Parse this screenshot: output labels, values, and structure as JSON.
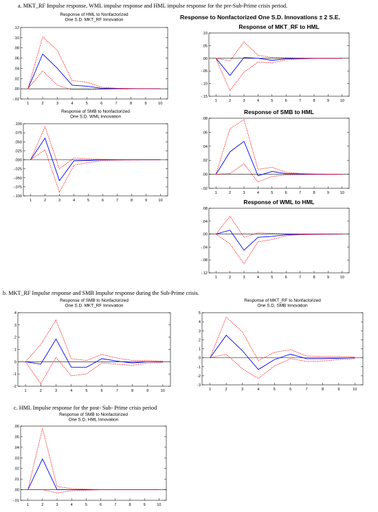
{
  "captions": {
    "a": "a. MKT_RF Impulse response, WML impulse response and HML impulse response for the pre-Sub-Prime crisis period.",
    "b": "b. MKT_RF Impulse response and SMB Impulse response during the Sub-Prime crisis.",
    "c": "c. HML Impulse response for the post- Sub- Prime crisis period"
  },
  "group_title": "Response to Nonfactorized One S.D. Innovations ± 2 S.E.",
  "colors": {
    "response": "#0000ff",
    "band": "#ff0000",
    "axis": "#000000",
    "zero": "#000000"
  },
  "chart_data": [
    {
      "id": "a1",
      "type": "line",
      "title": [
        "Response of HML to Nonfactorized",
        "One S.D. MKT_RF Innovation"
      ],
      "x": [
        1,
        2,
        3,
        4,
        5,
        6,
        7,
        8,
        9,
        10
      ],
      "xticks": [
        "1",
        "2",
        "3",
        "4",
        "5",
        "6",
        "7",
        "8",
        "9",
        "10"
      ],
      "ylim": [
        -0.02,
        0.12
      ],
      "yticks": [
        -0.02,
        0.0,
        0.02,
        0.04,
        0.06,
        0.08,
        0.1,
        0.12
      ],
      "yticklabels": [
        "-.02",
        ".00",
        ".02",
        ".04",
        ".06",
        ".08",
        ".10",
        ".12"
      ],
      "series": [
        {
          "role": "response",
          "values": [
            0.0,
            0.068,
            0.04,
            0.007,
            0.005,
            0.001,
            0.0005,
            0.0002,
            0.0001,
            0.0
          ]
        },
        {
          "role": "upper",
          "values": [
            0.0,
            0.102,
            0.075,
            0.016,
            0.013,
            0.003,
            0.001,
            0.0005,
            0.0002,
            0.0
          ]
        },
        {
          "role": "lower",
          "values": [
            0.0,
            0.035,
            0.007,
            -0.002,
            -0.002,
            -0.001,
            -0.0005,
            -0.0002,
            -0.0001,
            0.0
          ]
        }
      ]
    },
    {
      "id": "a2",
      "type": "line",
      "title": [
        "Response of SMB to Nonfactorized",
        "One S.D. WML Innovation"
      ],
      "x": [
        1,
        2,
        3,
        4,
        5,
        6,
        7,
        8,
        9,
        10
      ],
      "xticks": [
        "1",
        "2",
        "3",
        "4",
        "5",
        "6",
        "7",
        "8",
        "9",
        "10"
      ],
      "ylim": [
        -0.1,
        0.1
      ],
      "yticks": [
        -0.1,
        -0.075,
        -0.05,
        -0.025,
        0.0,
        0.025,
        0.05,
        0.075,
        0.1
      ],
      "yticklabels": [
        "-.100",
        "-.075",
        "-.050",
        "-.025",
        ".000",
        ".025",
        ".050",
        ".075",
        ".100"
      ],
      "series": [
        {
          "role": "response",
          "values": [
            0.0,
            0.06,
            -0.058,
            -0.003,
            -0.002,
            0.0,
            0.0,
            0.0,
            0.0,
            0.0
          ]
        },
        {
          "role": "upper",
          "values": [
            0.0,
            0.092,
            -0.025,
            0.005,
            0.003,
            0.001,
            0.0005,
            0.0002,
            0.0001,
            0.0
          ]
        },
        {
          "role": "lower",
          "values": [
            0.0,
            0.028,
            -0.09,
            -0.015,
            -0.008,
            -0.002,
            -0.001,
            -0.0005,
            -0.0002,
            0.0
          ]
        }
      ]
    },
    {
      "id": "a3",
      "type": "line",
      "title": [
        "Response of MKT_RF to HML"
      ],
      "x": [
        1,
        2,
        3,
        4,
        5,
        6,
        7,
        8,
        9,
        10
      ],
      "xticks": [
        "1",
        "2",
        "3",
        "4",
        "5",
        "6",
        "7",
        "8",
        "9",
        "10"
      ],
      "ylim": [
        -0.15,
        0.1
      ],
      "yticks": [
        -0.15,
        -0.1,
        -0.05,
        0.0,
        0.05,
        0.1
      ],
      "yticklabels": [
        "-.15",
        "-.10",
        "-.05",
        ".00",
        ".05",
        ".10"
      ],
      "series": [
        {
          "role": "response",
          "values": [
            0.0,
            -0.068,
            0.003,
            0.0,
            -0.008,
            -0.002,
            -0.001,
            -0.0005,
            -0.0002,
            0.0
          ]
        },
        {
          "role": "upper",
          "values": [
            0.0,
            -0.01,
            0.065,
            0.012,
            0.003,
            0.002,
            0.001,
            0.0005,
            0.0002,
            0.0
          ]
        },
        {
          "role": "lower",
          "values": [
            0.0,
            -0.128,
            -0.055,
            -0.015,
            -0.018,
            -0.006,
            -0.003,
            -0.001,
            -0.0005,
            0.0
          ]
        }
      ]
    },
    {
      "id": "a4",
      "type": "line",
      "title": [
        "Response of SMB to HML"
      ],
      "x": [
        1,
        2,
        3,
        4,
        5,
        6,
        7,
        8,
        9,
        10
      ],
      "xticks": [
        "1",
        "2",
        "3",
        "4",
        "5",
        "6",
        "7",
        "8",
        "9",
        "10"
      ],
      "ylim": [
        -0.02,
        0.08
      ],
      "yticks": [
        -0.02,
        0.0,
        0.02,
        0.04,
        0.06,
        0.08
      ],
      "yticklabels": [
        "-.02",
        ".00",
        ".02",
        ".04",
        ".06",
        ".08"
      ],
      "series": [
        {
          "role": "response",
          "values": [
            0.0,
            0.032,
            0.047,
            -0.002,
            0.004,
            0.001,
            0.0005,
            0.0002,
            0.0001,
            0.0
          ]
        },
        {
          "role": "upper",
          "values": [
            0.0,
            0.065,
            0.078,
            0.007,
            0.01,
            0.003,
            0.001,
            0.0005,
            0.0002,
            0.0
          ]
        },
        {
          "role": "lower",
          "values": [
            0.0,
            0.001,
            0.015,
            -0.011,
            -0.003,
            -0.001,
            -0.0005,
            -0.0002,
            -0.0001,
            0.0
          ]
        }
      ]
    },
    {
      "id": "a5",
      "type": "line",
      "title": [
        "Response of WML to HML"
      ],
      "x": [
        1,
        2,
        3,
        4,
        5,
        6,
        7,
        8,
        9,
        10
      ],
      "xticks": [
        "1",
        "2",
        "3",
        "4",
        "5",
        "6",
        "7",
        "8",
        "9",
        "10"
      ],
      "ylim": [
        -0.12,
        0.08
      ],
      "yticks": [
        -0.12,
        -0.08,
        -0.04,
        0.0,
        0.04,
        0.08
      ],
      "yticklabels": [
        "-.12",
        "-.08",
        "-.04",
        ".00",
        ".04",
        ".08"
      ],
      "series": [
        {
          "role": "response",
          "values": [
            0.0,
            0.012,
            -0.05,
            -0.01,
            -0.007,
            -0.002,
            -0.001,
            -0.0005,
            -0.0002,
            0.0
          ]
        },
        {
          "role": "upper",
          "values": [
            0.0,
            0.055,
            -0.01,
            0.004,
            0.002,
            0.001,
            0.0005,
            0.0002,
            0.0001,
            0.0
          ]
        },
        {
          "role": "lower",
          "values": [
            0.0,
            -0.03,
            -0.092,
            -0.024,
            -0.017,
            -0.005,
            -0.002,
            -0.001,
            -0.0005,
            0.0
          ]
        }
      ]
    },
    {
      "id": "b1",
      "type": "line",
      "title": [
        "Response of SMB to Nonfactorized",
        "One S.D. MKT_RF Innovation"
      ],
      "x": [
        1,
        2,
        3,
        4,
        5,
        6,
        7,
        8,
        9,
        10
      ],
      "xticks": [
        "1",
        "2",
        "3",
        "4",
        "5",
        "6",
        "7",
        "8",
        "9",
        "10"
      ],
      "ylim": [
        -2,
        4
      ],
      "yticks": [
        -2,
        -1,
        0,
        1,
        2,
        3,
        4
      ],
      "yticklabels": [
        "-2",
        "-1",
        "0",
        "1",
        "2",
        "3",
        "4"
      ],
      "series": [
        {
          "role": "response",
          "values": [
            0.0,
            -0.2,
            1.85,
            -0.45,
            -0.45,
            0.25,
            0.05,
            -0.1,
            0.0,
            0.0
          ]
        },
        {
          "role": "upper",
          "values": [
            0.0,
            1.4,
            3.4,
            0.25,
            0.1,
            0.6,
            0.3,
            0.1,
            0.1,
            0.05
          ]
        },
        {
          "role": "lower",
          "values": [
            0.0,
            -1.8,
            0.35,
            -1.15,
            -1.0,
            -0.1,
            -0.2,
            -0.3,
            -0.1,
            -0.05
          ]
        }
      ]
    },
    {
      "id": "b2",
      "type": "line",
      "title": [
        "Response of MKT_RF to Nonfactorized",
        "One S.D. SMB Innovation"
      ],
      "x": [
        1,
        2,
        3,
        4,
        5,
        6,
        7,
        8,
        9,
        10
      ],
      "xticks": [
        "1",
        "2",
        "3",
        "4",
        "5",
        "6",
        "7",
        "8",
        "9",
        "10"
      ],
      "ylim": [
        -3,
        5
      ],
      "yticks": [
        -3,
        -2,
        -1,
        0,
        1,
        2,
        3,
        4,
        5
      ],
      "yticklabels": [
        "-3",
        "-2",
        "-1",
        "0",
        "1",
        "2",
        "3",
        "4",
        "5"
      ],
      "series": [
        {
          "role": "response",
          "values": [
            0.0,
            2.5,
            0.8,
            -1.3,
            -0.2,
            0.4,
            -0.1,
            -0.1,
            -0.05,
            0.0
          ]
        },
        {
          "role": "upper",
          "values": [
            0.0,
            4.5,
            2.9,
            -0.3,
            0.6,
            0.9,
            0.2,
            0.15,
            0.15,
            0.1
          ]
        },
        {
          "role": "lower",
          "values": [
            0.0,
            0.4,
            -1.2,
            -2.3,
            -0.9,
            -0.1,
            -0.4,
            -0.35,
            -0.2,
            -0.1
          ]
        }
      ]
    },
    {
      "id": "c1",
      "type": "line",
      "title": [
        "Response of SMB to Nonfactorized",
        "One S.D. HML Innovation"
      ],
      "x": [
        1,
        2,
        3,
        4,
        5,
        6,
        7,
        8,
        9,
        10
      ],
      "xticks": [
        "1",
        "2",
        "3",
        "4",
        "5",
        "6",
        "7",
        "8",
        "9",
        "10"
      ],
      "ylim": [
        -0.01,
        0.06
      ],
      "yticks": [
        -0.01,
        0.0,
        0.01,
        0.02,
        0.03,
        0.04,
        0.05,
        0.06
      ],
      "yticklabels": [
        "-.01",
        ".00",
        ".01",
        ".02",
        ".03",
        ".04",
        ".05",
        ".06"
      ],
      "series": [
        {
          "role": "response",
          "values": [
            0.0,
            0.029,
            0.0,
            0.0,
            0.0,
            0.0,
            0.0,
            0.0,
            0.0,
            0.0
          ]
        },
        {
          "role": "upper",
          "values": [
            0.0,
            0.058,
            0.003,
            0.001,
            0.0005,
            0.0,
            0.0,
            0.0,
            0.0,
            0.0
          ]
        },
        {
          "role": "lower",
          "values": [
            0.0,
            0.0,
            -0.003,
            -0.001,
            -0.0005,
            0.0,
            0.0,
            0.0,
            0.0,
            0.0
          ]
        }
      ]
    }
  ]
}
